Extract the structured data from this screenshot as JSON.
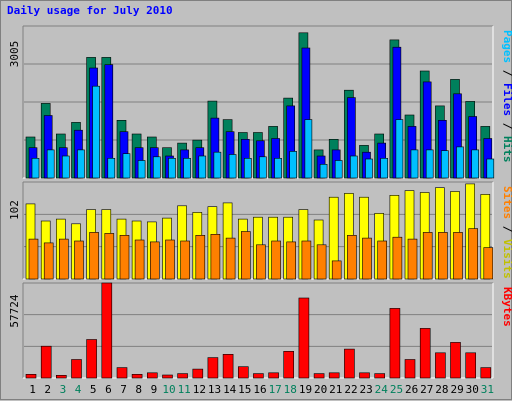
{
  "title": "Daily usage for July 2010",
  "chart_data": [
    {
      "type": "bar",
      "panel": "hits-files-pages",
      "max_label": "3005",
      "ylim": [
        0,
        3005
      ],
      "categories": [
        "1",
        "2",
        "3",
        "4",
        "5",
        "6",
        "7",
        "8",
        "9",
        "10",
        "11",
        "12",
        "13",
        "14",
        "15",
        "16",
        "17",
        "18",
        "19",
        "20",
        "21",
        "22",
        "23",
        "24",
        "25",
        "26",
        "27",
        "28",
        "29",
        "30",
        "31"
      ],
      "series": [
        {
          "name": "Hits",
          "color": "#00805c",
          "values": [
            810,
            1475,
            870,
            1100,
            2385,
            2385,
            1140,
            870,
            810,
            600,
            690,
            750,
            1520,
            1155,
            900,
            900,
            1020,
            1580,
            2870,
            555,
            765,
            1735,
            645,
            870,
            2730,
            1245,
            2115,
            1425,
            1950,
            1515,
            1020
          ]
        },
        {
          "name": "Files",
          "color": "#0000ff",
          "values": [
            600,
            1235,
            600,
            945,
            2175,
            2240,
            915,
            600,
            600,
            435,
            555,
            600,
            1185,
            915,
            765,
            735,
            780,
            1425,
            2570,
            435,
            555,
            1590,
            510,
            690,
            2585,
            1020,
            1900,
            1140,
            1665,
            1215,
            780
          ]
        },
        {
          "name": "Pages",
          "color": "#00c0ff",
          "values": [
            390,
            555,
            435,
            555,
            1815,
            390,
            480,
            345,
            420,
            390,
            390,
            435,
            510,
            465,
            390,
            420,
            390,
            525,
            1155,
            270,
            345,
            435,
            375,
            390,
            1155,
            555,
            555,
            540,
            615,
            555,
            375
          ]
        }
      ],
      "legend": [
        "Pages",
        " / ",
        "Files",
        " / ",
        "Hits"
      ]
    },
    {
      "type": "bar",
      "panel": "visits-sites",
      "max_label": "102",
      "ylim": [
        0,
        102
      ],
      "categories": [
        "1",
        "2",
        "3",
        "4",
        "5",
        "6",
        "7",
        "8",
        "9",
        "10",
        "11",
        "12",
        "13",
        "14",
        "15",
        "16",
        "17",
        "18",
        "19",
        "20",
        "21",
        "22",
        "23",
        "24",
        "25",
        "26",
        "27",
        "28",
        "29",
        "30",
        "31"
      ],
      "series": [
        {
          "name": "Visits",
          "color": "#ffff00",
          "values": [
            79,
            61,
            63,
            58,
            73,
            73,
            63,
            61,
            60,
            64,
            77,
            70,
            76,
            80,
            63,
            65,
            65,
            65,
            73,
            62,
            86,
            90,
            86,
            69,
            88,
            93,
            91,
            96,
            92,
            100,
            89
          ]
        },
        {
          "name": "Sites",
          "color": "#ff8000",
          "values": [
            42,
            38,
            42,
            40,
            49,
            48,
            46,
            41,
            39,
            41,
            40,
            46,
            47,
            43,
            50,
            36,
            40,
            39,
            40,
            36,
            19,
            46,
            43,
            40,
            44,
            42,
            49,
            49,
            49,
            53,
            33
          ]
        }
      ],
      "legend": [
        "Sites",
        " / ",
        "Visits"
      ]
    },
    {
      "type": "bar",
      "panel": "kbytes",
      "max_label": "57724",
      "ylim": [
        0,
        57724
      ],
      "categories": [
        "1",
        "2",
        "3",
        "4",
        "5",
        "6",
        "7",
        "8",
        "9",
        "10",
        "11",
        "12",
        "13",
        "14",
        "15",
        "16",
        "17",
        "18",
        "19",
        "20",
        "21",
        "22",
        "23",
        "24",
        "25",
        "26",
        "27",
        "28",
        "29",
        "30",
        "31"
      ],
      "series": [
        {
          "name": "KBytes",
          "color": "#ff0000",
          "values": [
            2250,
            19350,
            1620,
            11250,
            23390,
            57724,
            6300,
            2250,
            3150,
            1800,
            2700,
            5400,
            12420,
            14400,
            6880,
            2700,
            3150,
            16200,
            48600,
            2700,
            3150,
            17550,
            3150,
            2700,
            42300,
            11250,
            30150,
            15300,
            21620,
            15300,
            6300
          ]
        }
      ],
      "legend": [
        "KBytes"
      ]
    }
  ],
  "x_label_colors": {
    "weekday": "#000000",
    "weekend": "#00805c"
  },
  "weekend_days": [
    "3",
    "4",
    "10",
    "11",
    "17",
    "18",
    "24",
    "25",
    "31"
  ]
}
